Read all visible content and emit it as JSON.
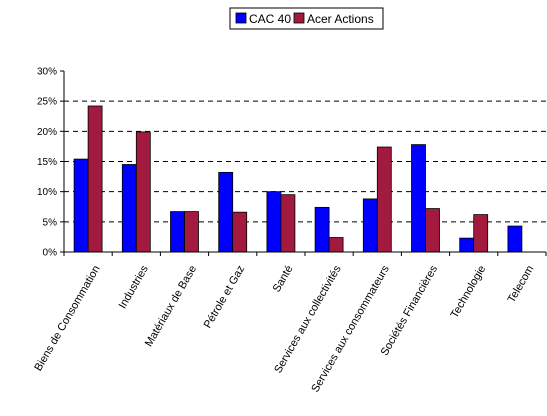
{
  "chart_data": {
    "type": "bar",
    "title": "",
    "xlabel": "",
    "ylabel": "",
    "ylim": [
      0,
      30
    ],
    "y_ticks": [
      "0%",
      "5%",
      "10%",
      "15%",
      "20%",
      "25%",
      "30%"
    ],
    "y_tick_values": [
      0,
      5,
      10,
      15,
      20,
      25,
      30
    ],
    "grid": true,
    "legend_position": "top-center",
    "categories": [
      "Biens de Consommation",
      "Industries",
      "Matériaux de Base",
      "Pétrole et Gaz",
      "Santé",
      "Services aux collectivités",
      "Services aux consommateurs",
      "Sociétés Financières",
      "Technologie",
      "Telecom"
    ],
    "series": [
      {
        "name": "CAC 40",
        "color": "#0000ff",
        "values": [
          15.4,
          14.5,
          6.7,
          13.2,
          10.0,
          7.4,
          8.8,
          17.8,
          2.3,
          4.3
        ]
      },
      {
        "name": "Acer Actions",
        "color": "#a31a3f",
        "values": [
          24.2,
          19.9,
          6.7,
          6.6,
          9.5,
          2.4,
          17.4,
          7.2,
          6.2,
          0
        ]
      }
    ]
  }
}
